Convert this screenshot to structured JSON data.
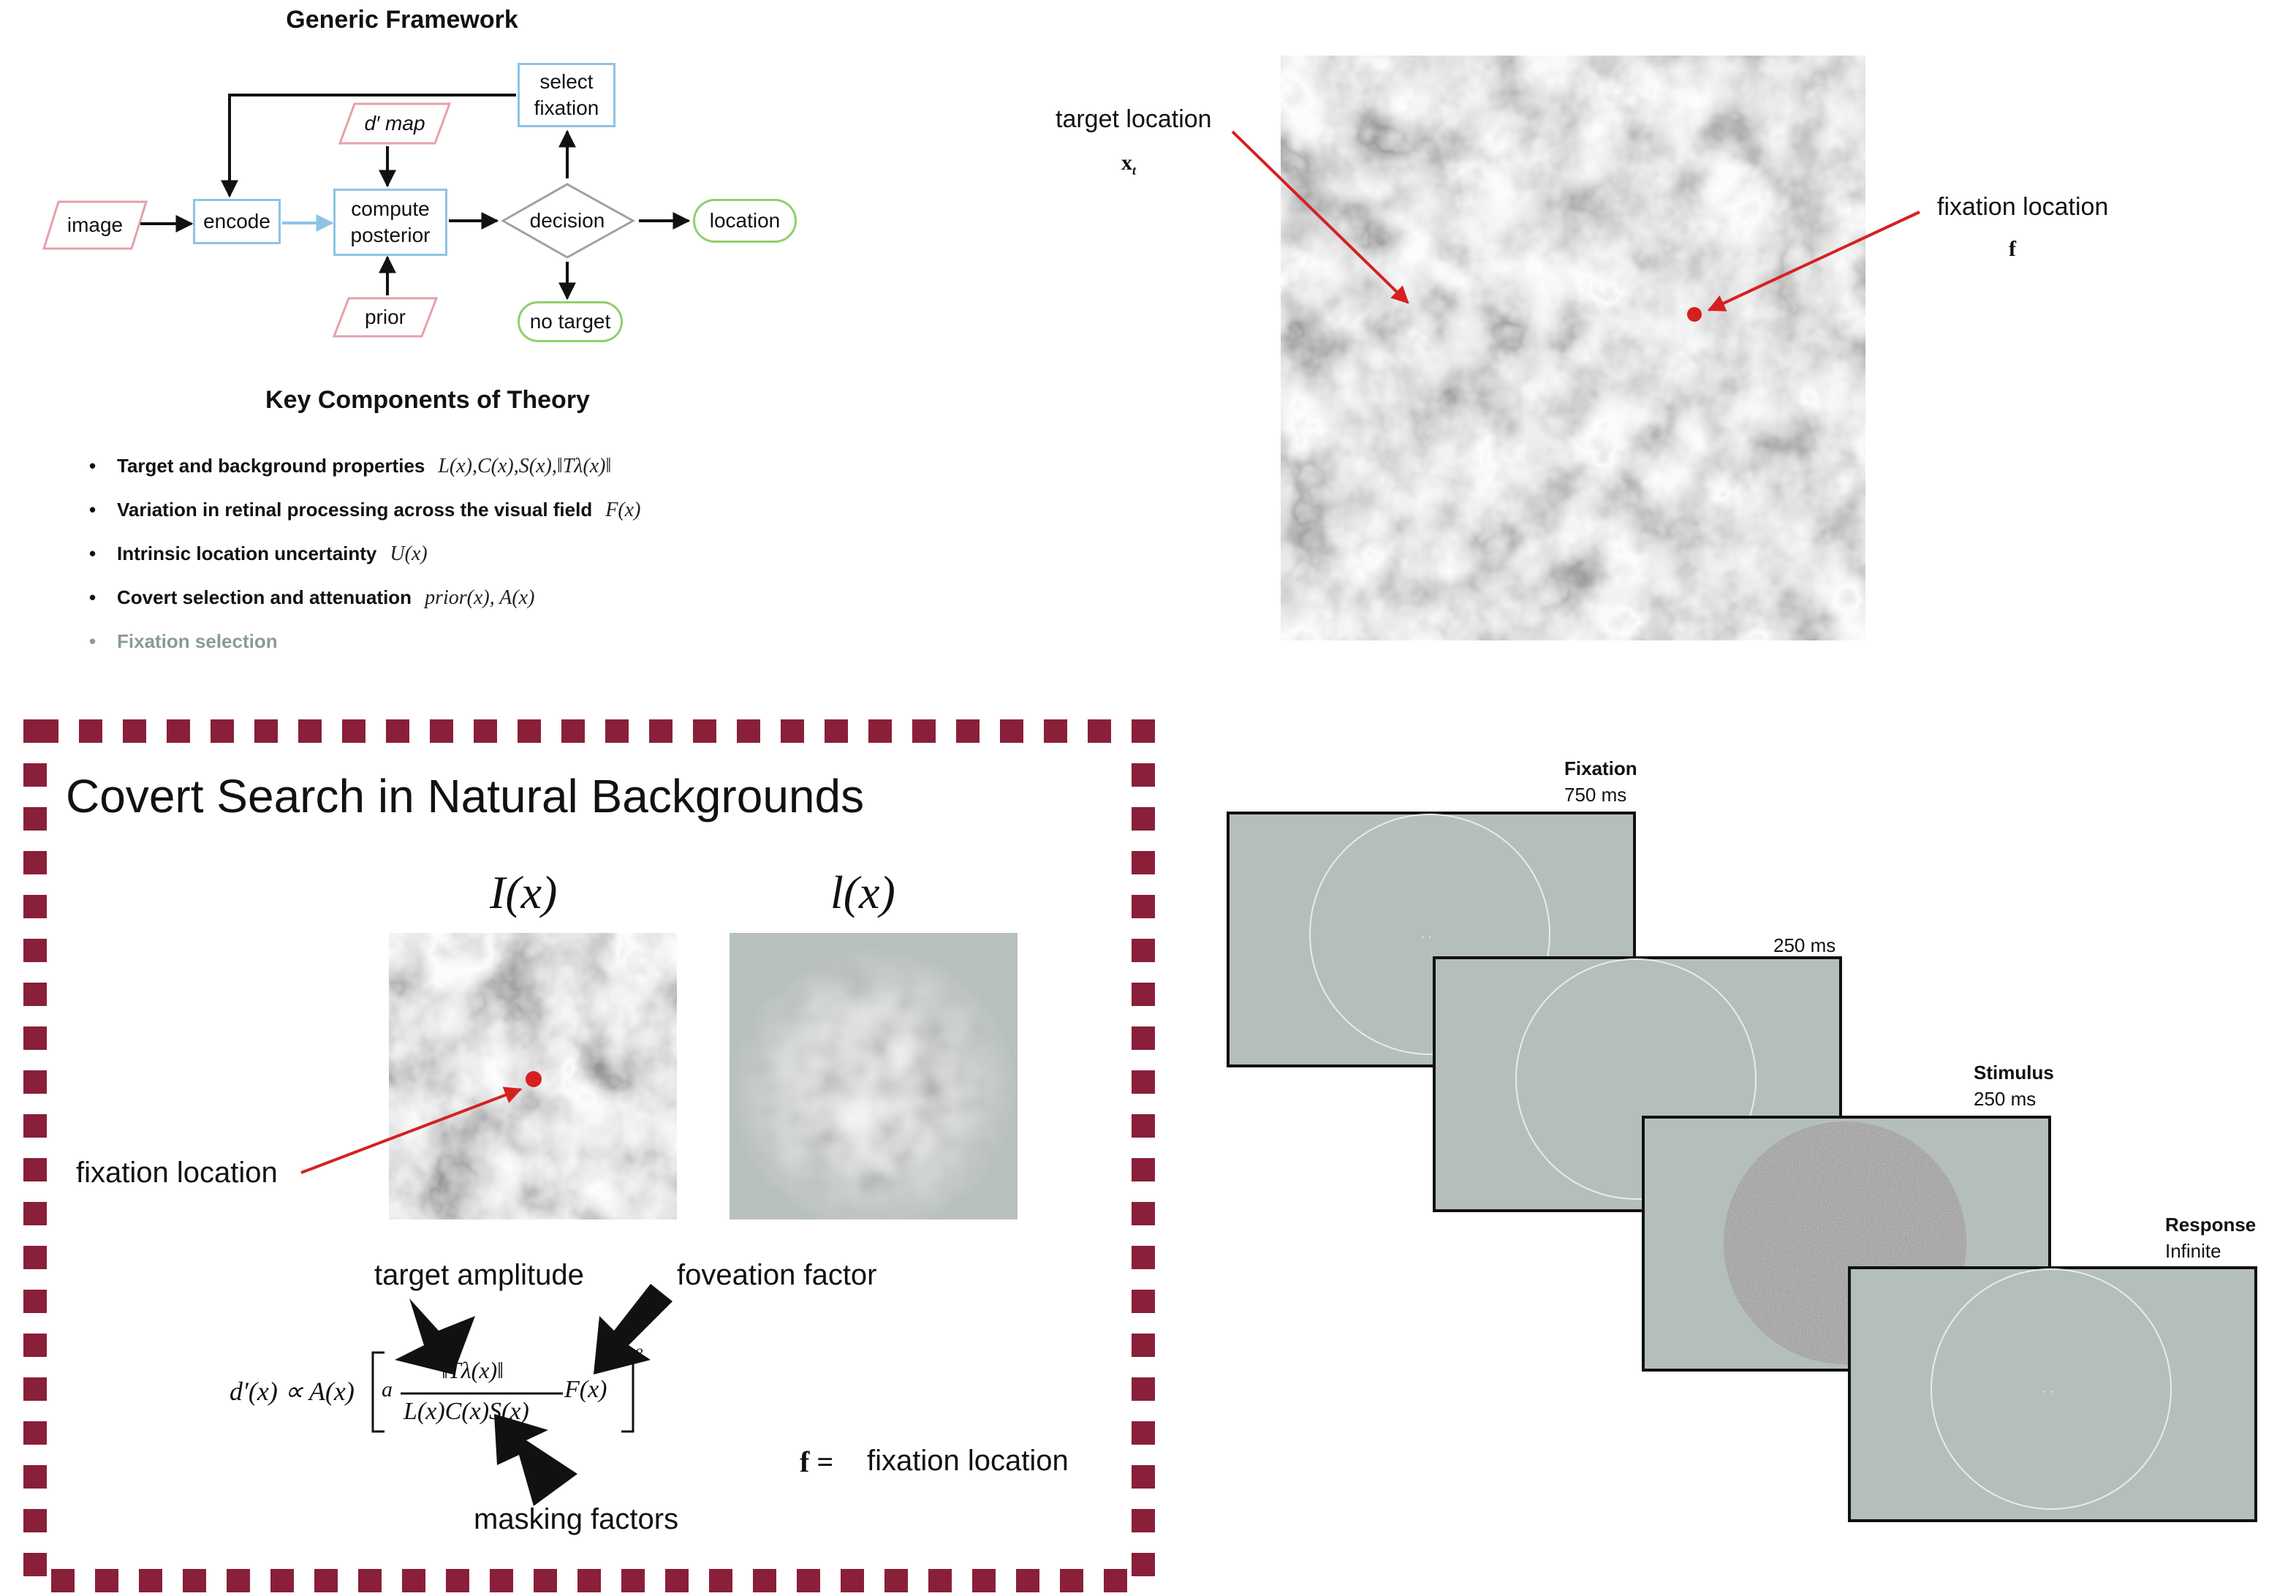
{
  "framework": {
    "title": "Generic Framework",
    "nodes": {
      "image": "image",
      "encode": "encode",
      "dprime_map": "d′ map",
      "compute_posterior_l1": "compute",
      "compute_posterior_l2": "posterior",
      "prior": "prior",
      "decision": "decision",
      "select_fixation_l1": "select",
      "select_fixation_l2": "fixation",
      "location": "location",
      "no_target": "no target"
    }
  },
  "theory": {
    "title": "Key Components of Theory",
    "bullets": [
      {
        "text": "Target and background properties",
        "math": "L(x),C(x),S(x),‖Tλ(x)‖"
      },
      {
        "text": "Variation in retinal processing across the visual field",
        "math": "F(x)"
      },
      {
        "text": "Intrinsic location uncertainty",
        "math": "U(x)"
      },
      {
        "text": "Covert selection and attenuation",
        "math": "prior(x), A(x)"
      },
      {
        "text": "Fixation selection",
        "math": ""
      }
    ]
  },
  "photo": {
    "target_label": "target location",
    "target_symbol": "x",
    "target_sub": "t",
    "fixation_label": "fixation location",
    "fixation_symbol": "f"
  },
  "covert": {
    "title": "Covert Search in Natural Backgrounds",
    "image_label_I": "I(x)",
    "image_label_l": "l(x)",
    "fixation_location": "fixation location",
    "target_amplitude": "target amplitude",
    "foveation_factor": "foveation factor",
    "masking_factors": "masking factors",
    "f_symbol": "f =",
    "f_label": "fixation location",
    "formula": {
      "lhs": "d′(x) ∝ A(x)",
      "a": "a",
      "numerator": "‖Tλ(x)‖",
      "denominator": "L(x)C(x)S(x)",
      "F": "F(x)",
      "exp": "β"
    }
  },
  "trial": {
    "fixation_title": "Fixation",
    "fixation_time": "750 ms",
    "blank_time": "250 ms",
    "stimulus_title": "Stimulus",
    "stimulus_time": "250  ms",
    "response_title": "Response",
    "response_time": "Infinite"
  },
  "colors": {
    "pink": "#e6a0a8",
    "blue": "#8ec3e6",
    "green": "#8fd06a",
    "red_marker": "#d62020",
    "dash_border": "#8a1f3a",
    "screen_gray": "#b4bfbc"
  }
}
